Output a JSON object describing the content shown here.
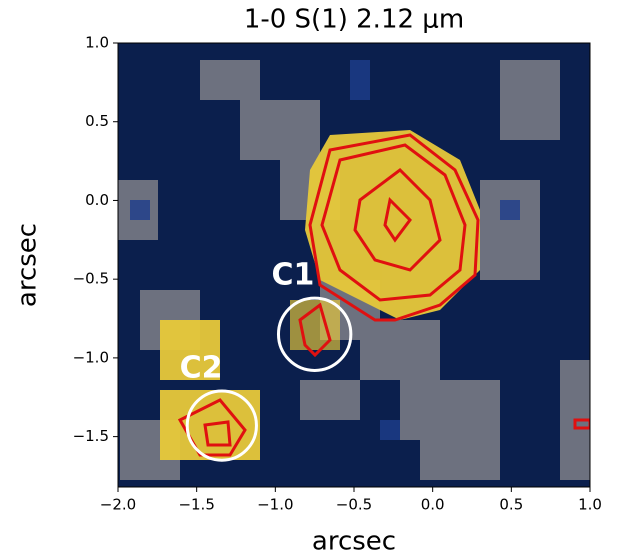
{
  "chart_data": {
    "type": "image",
    "title": "1-0 S(1) 2.12 μm",
    "xlabel": "arcsec",
    "ylabel": "arcsec",
    "xlim": [
      -2.0,
      1.0
    ],
    "ylim": [
      -1.82,
      1.0
    ],
    "xticks": [
      {
        "value": -2.0,
        "label": "−2.0"
      },
      {
        "value": -1.5,
        "label": "−1.5"
      },
      {
        "value": -1.0,
        "label": "−1.0"
      },
      {
        "value": -0.5,
        "label": "−0.5"
      },
      {
        "value": 0.0,
        "label": "0.0"
      },
      {
        "value": 0.5,
        "label": "0.5"
      },
      {
        "value": 1.0,
        "label": "1.0"
      }
    ],
    "yticks": [
      {
        "value": 1.0,
        "label": "1.0"
      },
      {
        "value": 0.5,
        "label": "0.5"
      },
      {
        "value": 0.0,
        "label": "0.0"
      },
      {
        "value": -0.5,
        "label": "−0.5"
      },
      {
        "value": -1.0,
        "label": "−1.0"
      },
      {
        "value": -1.5,
        "label": "−1.5"
      }
    ],
    "annotations": [
      {
        "text": "C1",
        "x": -0.75,
        "y": -0.85,
        "r": 0.23
      },
      {
        "text": "C2",
        "x": -1.34,
        "y": -1.43,
        "r": 0.22
      }
    ]
  }
}
